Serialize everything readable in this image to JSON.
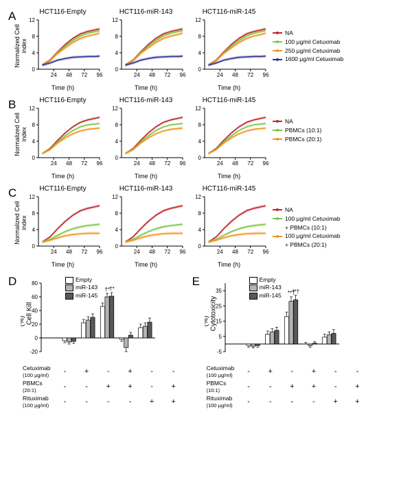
{
  "linePanels": [
    {
      "label": "A",
      "ylabel": "Normalized Cell index",
      "xlabel": "Time (h)",
      "titles": [
        "HCT116-Empty",
        "HCT116-miR-143",
        "HCT116-miR-145"
      ],
      "xlim": [
        0,
        96
      ],
      "xtick_step": 24,
      "ylim": [
        0,
        12
      ],
      "ytick_step": 4,
      "series": [
        {
          "name": "NA",
          "color": "#c1272d",
          "values": [
            [
              6,
              1.0
            ],
            [
              18,
              2.2
            ],
            [
              30,
              4.2
            ],
            [
              42,
              6.0
            ],
            [
              54,
              7.5
            ],
            [
              66,
              8.6
            ],
            [
              78,
              9.2
            ],
            [
              90,
              9.6
            ],
            [
              96,
              9.8
            ]
          ]
        },
        {
          "name": "100 μg/ml Cetuximab",
          "color": "#7ac943",
          "values": [
            [
              6,
              1.0
            ],
            [
              18,
              2.1
            ],
            [
              30,
              4.0
            ],
            [
              42,
              5.6
            ],
            [
              54,
              7.0
            ],
            [
              66,
              8.1
            ],
            [
              78,
              8.8
            ],
            [
              90,
              9.2
            ],
            [
              96,
              9.4
            ]
          ]
        },
        {
          "name": "250 μg/ml Cetuximab",
          "color": "#f7931e",
          "values": [
            [
              6,
              1.0
            ],
            [
              18,
              2.0
            ],
            [
              30,
              3.8
            ],
            [
              42,
              5.2
            ],
            [
              54,
              6.5
            ],
            [
              66,
              7.5
            ],
            [
              78,
              8.1
            ],
            [
              90,
              8.5
            ],
            [
              96,
              8.8
            ]
          ]
        },
        {
          "name": "1600 μg/ml Cetuximab",
          "color": "#2e3192",
          "values": [
            [
              6,
              1.0
            ],
            [
              18,
              1.5
            ],
            [
              30,
              2.2
            ],
            [
              42,
              2.6
            ],
            [
              54,
              2.9
            ],
            [
              66,
              3.0
            ],
            [
              78,
              3.1
            ],
            [
              90,
              3.1
            ],
            [
              96,
              3.2
            ]
          ]
        }
      ],
      "legend": [
        {
          "color": "#c1272d",
          "label": "NA"
        },
        {
          "color": "#7ac943",
          "label": "100 μg/ml Cetuximab"
        },
        {
          "color": "#f7931e",
          "label": "250 μg/ml Cetuximab"
        },
        {
          "color": "#2e3192",
          "label": "1600 μg/ml Cetuximab"
        }
      ],
      "errband": 0.35
    },
    {
      "label": "B",
      "ylabel": "Normalized Cell index",
      "xlabel": "Time (h)",
      "titles": [
        "HCT116-Empty",
        "HCT116-miR-143",
        "HCT116-miR-145"
      ],
      "xlim": [
        0,
        96
      ],
      "xtick_step": 24,
      "ylim": [
        0,
        12
      ],
      "ytick_step": 4,
      "series": [
        {
          "name": "NA",
          "color": "#c1272d",
          "values": [
            [
              6,
              1.0
            ],
            [
              18,
              2.2
            ],
            [
              30,
              4.2
            ],
            [
              42,
              6.0
            ],
            [
              54,
              7.5
            ],
            [
              66,
              8.6
            ],
            [
              78,
              9.2
            ],
            [
              90,
              9.6
            ],
            [
              96,
              9.8
            ]
          ]
        },
        {
          "name": "PBMCs (10:1)",
          "color": "#7ac943",
          "values": [
            [
              6,
              1.0
            ],
            [
              18,
              2.0
            ],
            [
              30,
              3.8
            ],
            [
              42,
              5.3
            ],
            [
              54,
              6.6
            ],
            [
              66,
              7.5
            ],
            [
              78,
              8.0
            ],
            [
              90,
              8.2
            ],
            [
              96,
              8.3
            ]
          ]
        },
        {
          "name": "PBMCs (20:1)",
          "color": "#f7931e",
          "values": [
            [
              6,
              1.0
            ],
            [
              18,
              1.9
            ],
            [
              30,
              3.5
            ],
            [
              42,
              4.8
            ],
            [
              54,
              5.8
            ],
            [
              66,
              6.5
            ],
            [
              78,
              6.9
            ],
            [
              90,
              7.1
            ],
            [
              96,
              7.2
            ]
          ]
        }
      ],
      "legend": [
        {
          "color": "#c1272d",
          "label": "NA"
        },
        {
          "color": "#7ac943",
          "label": "PBMCs (10:1)"
        },
        {
          "color": "#f7931e",
          "label": "PBMCs (20:1)"
        }
      ],
      "errband": 0.3
    },
    {
      "label": "C",
      "ylabel": "Normalized Cell index",
      "xlabel": "Time (h)",
      "titles": [
        "HCT116-Empty",
        "HCT116-miR-143",
        "HCT116-miR-145"
      ],
      "xlim": [
        0,
        96
      ],
      "xtick_step": 24,
      "ylim": [
        0,
        12
      ],
      "ytick_step": 4,
      "series": [
        {
          "name": "NA",
          "color": "#c1272d",
          "values": [
            [
              6,
              1.0
            ],
            [
              18,
              2.2
            ],
            [
              30,
              4.2
            ],
            [
              42,
              6.0
            ],
            [
              54,
              7.5
            ],
            [
              66,
              8.6
            ],
            [
              78,
              9.2
            ],
            [
              90,
              9.6
            ],
            [
              96,
              9.8
            ]
          ]
        },
        {
          "name": "100 μg/ml Cetuximab + PBMCs (10:1)",
          "color": "#7ac943",
          "values": [
            [
              6,
              1.0
            ],
            [
              18,
              1.6
            ],
            [
              30,
              2.6
            ],
            [
              42,
              3.5
            ],
            [
              54,
              4.2
            ],
            [
              66,
              4.7
            ],
            [
              78,
              5.0
            ],
            [
              90,
              5.2
            ],
            [
              96,
              5.3
            ]
          ]
        },
        {
          "name": "100 μg/ml Cetuximab + PBMCs (20:1)",
          "color": "#f7931e",
          "values": [
            [
              6,
              1.0
            ],
            [
              18,
              1.4
            ],
            [
              30,
              2.0
            ],
            [
              42,
              2.5
            ],
            [
              54,
              2.8
            ],
            [
              66,
              3.0
            ],
            [
              78,
              3.1
            ],
            [
              90,
              3.1
            ],
            [
              96,
              3.1
            ]
          ]
        }
      ],
      "legend": [
        {
          "color": "#c1272d",
          "label": "NA"
        },
        {
          "color": "#7ac943",
          "label": "100 μg/ml Cetuximab\n+ PBMCs (10:1)"
        },
        {
          "color": "#f7931e",
          "label": "100 μg/ml Cetuximab\n+ PBMCs (20:1)"
        }
      ],
      "errband": 0.35
    }
  ],
  "barPanels": {
    "D": {
      "ylabel": "Cell Kill\n(%)",
      "ylim": [
        -20,
        80
      ],
      "ytick_step": 20,
      "groups": [
        "Empty",
        "miR-143",
        "miR-145"
      ],
      "group_colors": [
        "#ffffff",
        "#b3b3b3",
        "#595959"
      ],
      "conditions": [
        {
          "cetux": "-",
          "pbmc": "-",
          "ritux": "-",
          "vals": [
            0,
            0,
            0
          ],
          "err": [
            0,
            0,
            0
          ]
        },
        {
          "cetux": "+",
          "pbmc": "-",
          "ritux": "-",
          "vals": [
            -4,
            -6,
            -5
          ],
          "err": [
            3,
            3,
            3
          ]
        },
        {
          "cetux": "-",
          "pbmc": "+",
          "ritux": "-",
          "vals": [
            22,
            26,
            30
          ],
          "err": [
            5,
            5,
            5
          ]
        },
        {
          "cetux": "+",
          "pbmc": "+",
          "ritux": "-",
          "vals": [
            46,
            60,
            61
          ],
          "err": [
            5,
            5,
            5
          ],
          "sig": [
            "",
            "†*",
            "†*"
          ]
        },
        {
          "cetux": "-",
          "pbmc": "-",
          "ritux": "+",
          "vals": [
            -2,
            -14,
            4
          ],
          "err": [
            3,
            6,
            4
          ]
        },
        {
          "cetux": "-",
          "pbmc": "+",
          "ritux": "+",
          "vals": [
            15,
            17,
            23
          ],
          "err": [
            5,
            5,
            6
          ]
        }
      ]
    },
    "E": {
      "ylabel": "Cytotoxicity\n(%)",
      "ylim": [
        -5,
        40
      ],
      "ytick_step": 10,
      "groups": [
        "Empty",
        "miR-143",
        "miR-145"
      ],
      "group_colors": [
        "#ffffff",
        "#b3b3b3",
        "#595959"
      ],
      "conditions": [
        {
          "cetux": "-",
          "pbmc": "-",
          "ritux": "-",
          "vals": [
            0,
            0,
            0
          ],
          "err": [
            0,
            0,
            0
          ]
        },
        {
          "cetux": "+",
          "pbmc": "-",
          "ritux": "-",
          "vals": [
            -1,
            -1.5,
            -1
          ],
          "err": [
            1,
            1,
            1
          ]
        },
        {
          "cetux": "-",
          "pbmc": "+",
          "ritux": "-",
          "vals": [
            6.5,
            8,
            9
          ],
          "err": [
            2,
            2,
            2
          ]
        },
        {
          "cetux": "+",
          "pbmc": "+",
          "ritux": "-",
          "vals": [
            18,
            28,
            29
          ],
          "err": [
            3,
            3,
            3
          ],
          "sig": [
            "",
            "**†",
            "**†"
          ]
        },
        {
          "cetux": "-",
          "pbmc": "-",
          "ritux": "+",
          "vals": [
            0,
            -1,
            0.5
          ],
          "err": [
            1,
            1,
            1
          ]
        },
        {
          "cetux": "-",
          "pbmc": "+",
          "ritux": "+",
          "vals": [
            4.5,
            6,
            7
          ],
          "err": [
            2,
            2,
            2.5
          ]
        }
      ]
    }
  },
  "treatRows": {
    "D": [
      {
        "label": "Cetuximab",
        "sub": "(100 μg/ml)",
        "key": "cetux"
      },
      {
        "label": "PBMCs",
        "sub": "(20:1)",
        "key": "pbmc"
      },
      {
        "label": "Rituximab",
        "sub": "(100 μg/ml)",
        "key": "ritux"
      }
    ],
    "E": [
      {
        "label": "Cetuximab",
        "sub": "(100 μg/ml)",
        "key": "cetux"
      },
      {
        "label": "PBMCs",
        "sub": "(10:1)",
        "key": "pbmc"
      },
      {
        "label": "Rituximab",
        "sub": "(100 μg/ml)",
        "key": "ritux"
      }
    ]
  },
  "chart_geom": {
    "w": 115,
    "h": 92,
    "ml": 22,
    "mb": 16,
    "bw": 200,
    "bh": 120
  }
}
